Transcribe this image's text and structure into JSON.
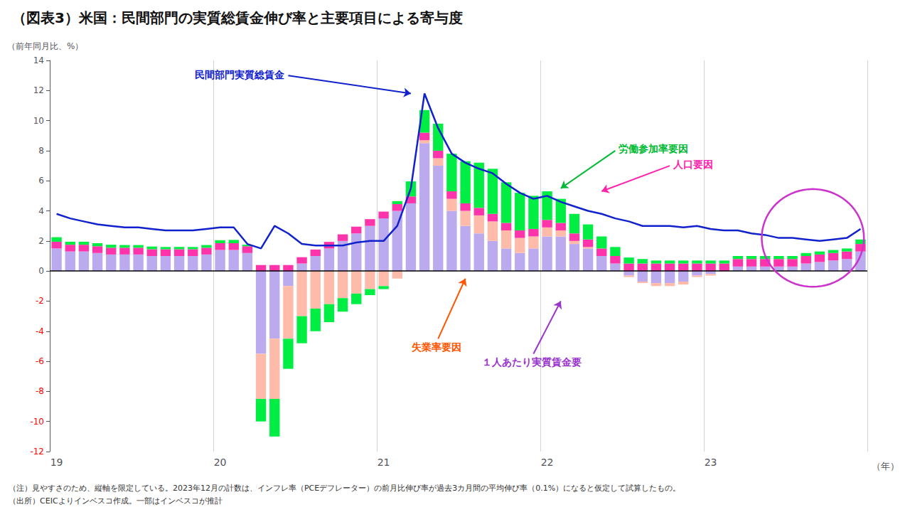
{
  "chart_data": {
    "type": "bar",
    "stacked": true,
    "title": "（図表3）米国：民間部門の実質総賃金伸び率と主要項目による寄与度",
    "ylabel": "（前年同月比、%）",
    "xlabel": "（年）",
    "categories": [
      "19",
      null,
      null,
      null,
      null,
      null,
      null,
      null,
      null,
      null,
      null,
      null,
      "20",
      null,
      null,
      null,
      null,
      null,
      null,
      null,
      null,
      null,
      null,
      null,
      "21",
      null,
      null,
      null,
      null,
      null,
      null,
      null,
      null,
      null,
      null,
      null,
      "22",
      null,
      null,
      null,
      null,
      null,
      null,
      null,
      null,
      null,
      null,
      null,
      "23",
      null,
      null,
      null,
      null,
      null,
      null,
      null,
      null,
      null,
      null,
      null
    ],
    "series": [
      {
        "type": "bar",
        "color": "#bbaaee",
        "values": [
          1.5,
          1.3,
          1.3,
          1.2,
          1.1,
          1.1,
          1.1,
          1.0,
          1.0,
          1.0,
          1.0,
          1.1,
          1.4,
          1.4,
          1.2,
          -5.5,
          -4.5,
          -1.0,
          0.5,
          1.0,
          1.5,
          2.0,
          2.5,
          3.0,
          3.5,
          4.0,
          4.5,
          8.5,
          7.0,
          4.0,
          3.0,
          2.5,
          2.0,
          1.5,
          1.2,
          1.5,
          2.3,
          2.3,
          1.8,
          1.5,
          1.0,
          0.5,
          -0.3,
          -0.7,
          -0.8,
          -0.8,
          -0.7,
          -0.3,
          -0.2,
          0.0,
          0.3,
          0.3,
          0.3,
          0.3,
          0.3,
          0.5,
          0.6,
          0.7,
          0.8,
          1.3
        ]
      },
      {
        "type": "bar",
        "color": "#ffbbaa",
        "values": [
          0.0,
          0.0,
          0.0,
          0.0,
          0.0,
          0.0,
          0.0,
          0.0,
          0.0,
          0.0,
          0.0,
          0.0,
          0.0,
          0.0,
          0.0,
          -3.0,
          -4.0,
          -3.5,
          -3.0,
          -2.5,
          -2.2,
          -1.8,
          -1.5,
          -1.2,
          -1.0,
          -0.5,
          0.0,
          0.2,
          0.5,
          0.8,
          1.0,
          1.2,
          1.3,
          1.2,
          1.0,
          0.8,
          0.6,
          0.4,
          0.2,
          0.1,
          0.0,
          0.0,
          -0.1,
          -0.1,
          -0.2,
          -0.2,
          -0.2,
          -0.1,
          -0.1,
          0.0,
          0.0,
          0.0,
          0.0,
          0.0,
          0.0,
          0.0,
          0.0,
          0.0,
          0.0,
          0.0
        ]
      },
      {
        "type": "bar",
        "color": "#ff33aa",
        "values": [
          0.45,
          0.45,
          0.45,
          0.45,
          0.45,
          0.45,
          0.45,
          0.45,
          0.45,
          0.45,
          0.45,
          0.45,
          0.45,
          0.45,
          0.45,
          0.4,
          0.4,
          0.4,
          0.42,
          0.43,
          0.44,
          0.44,
          0.45,
          0.45,
          0.45,
          0.45,
          0.46,
          0.5,
          0.5,
          0.5,
          0.5,
          0.5,
          0.5,
          0.5,
          0.5,
          0.5,
          0.5,
          0.5,
          0.5,
          0.5,
          0.5,
          0.5,
          0.5,
          0.5,
          0.5,
          0.5,
          0.5,
          0.5,
          0.5,
          0.5,
          0.5,
          0.5,
          0.5,
          0.5,
          0.5,
          0.5,
          0.5,
          0.5,
          0.5,
          0.5
        ]
      },
      {
        "type": "bar",
        "color": "#00ee44",
        "values": [
          0.3,
          0.2,
          0.2,
          0.2,
          0.2,
          0.18,
          0.18,
          0.18,
          0.15,
          0.15,
          0.15,
          0.18,
          0.2,
          0.22,
          0.1,
          -1.5,
          -2.5,
          -2.0,
          -1.8,
          -1.5,
          -1.2,
          -0.9,
          -0.7,
          -0.4,
          -0.2,
          0.2,
          1.0,
          1.5,
          1.8,
          2.5,
          2.8,
          3.0,
          3.0,
          2.7,
          2.5,
          2.2,
          1.9,
          1.6,
          1.3,
          1.0,
          0.8,
          0.6,
          0.4,
          0.3,
          0.2,
          0.2,
          0.2,
          0.2,
          0.2,
          0.2,
          0.2,
          0.2,
          0.2,
          0.2,
          0.2,
          0.2,
          0.2,
          0.2,
          0.2,
          0.3
        ]
      },
      {
        "type": "line",
        "color": "#1122cc",
        "values": [
          3.8,
          3.5,
          3.3,
          3.1,
          3.0,
          2.9,
          2.9,
          2.8,
          2.7,
          2.7,
          2.7,
          2.8,
          2.9,
          2.9,
          1.8,
          1.5,
          3.0,
          2.5,
          1.8,
          1.7,
          1.7,
          1.7,
          1.9,
          2.0,
          2.0,
          3.0,
          5.5,
          11.8,
          9.5,
          7.8,
          7.2,
          6.8,
          6.5,
          5.8,
          5.2,
          4.8,
          5.0,
          4.6,
          4.3,
          4.0,
          3.8,
          3.5,
          3.3,
          3.0,
          3.0,
          3.0,
          2.9,
          3.0,
          2.8,
          2.7,
          2.7,
          2.5,
          2.4,
          2.2,
          2.2,
          2.1,
          2.0,
          2.1,
          2.2,
          2.8
        ]
      }
    ],
    "ylim": [
      -12,
      14
    ],
    "yticks": [
      -12,
      -10,
      -8,
      -6,
      -4,
      -2,
      0,
      2,
      4,
      6,
      8,
      10,
      12,
      14
    ],
    "grid": "x",
    "annotations": [
      {
        "text": "民間部門実質総賃金",
        "color": "#1122cc"
      },
      {
        "text": "労働参加率要因",
        "color": "#00bb33"
      },
      {
        "text": "人口要因",
        "color": "#ff22aa"
      },
      {
        "text": "失業率要因",
        "color": "#ff5500"
      },
      {
        "text": "１人あたり実質賃金要",
        "color": "#9933cc"
      }
    ],
    "notes": [
      "（注）見やすさのため、縦軸を限定している。2023年12月の計数は、インフレ率（PCEデフレーター）の前月比伸び率が過去3カ月間の平均伸び率（0.1%）になると仮定して試算したもの。",
      "（出所）CEICよりインベスコ作成。一部はインベスコが推計"
    ]
  }
}
